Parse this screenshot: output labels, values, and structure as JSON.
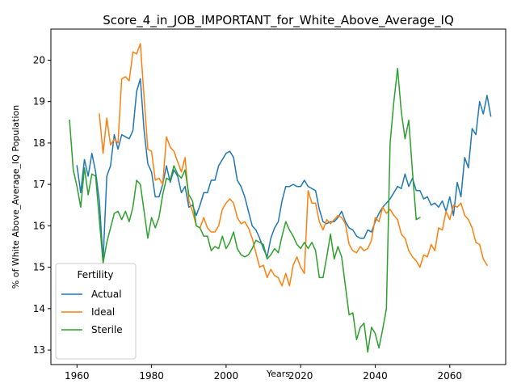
{
  "chart_data": {
    "type": "line",
    "title": "Score_4_in_JOB_IMPORTANT_for_White_Above_Average_IQ",
    "xlabel": "Years",
    "ylabel": "% of White Above_Average_IQ Population",
    "xlim": [
      1953,
      2075
    ],
    "ylim": [
      12.65,
      20.75
    ],
    "x_ticks": [
      1960,
      1980,
      2000,
      2020,
      2040,
      2060
    ],
    "y_ticks": [
      13,
      14,
      15,
      16,
      17,
      18,
      19,
      20
    ],
    "grid": false,
    "legend": {
      "title": "Fertility",
      "placement": "lower-left"
    },
    "series": [
      {
        "name": "Actual",
        "color": "#1f77b4",
        "points": [
          [
            1960,
            17.45
          ],
          [
            1961,
            16.8
          ],
          [
            1962,
            17.6
          ],
          [
            1963,
            17.2
          ],
          [
            1964,
            17.75
          ],
          [
            1965,
            17.3
          ],
          [
            1966,
            16.6
          ],
          [
            1967,
            15.15
          ],
          [
            1968,
            17.2
          ],
          [
            1969,
            17.45
          ],
          [
            1970,
            18.2
          ],
          [
            1971,
            17.85
          ],
          [
            1972,
            18.2
          ],
          [
            1973,
            18.15
          ],
          [
            1974,
            18.1
          ],
          [
            1975,
            18.3
          ],
          [
            1976,
            19.25
          ],
          [
            1977,
            19.55
          ],
          [
            1978,
            18.3
          ],
          [
            1979,
            17.5
          ],
          [
            1980,
            17.3
          ],
          [
            1981,
            16.7
          ],
          [
            1982,
            16.7
          ],
          [
            1983,
            17.0
          ],
          [
            1984,
            17.45
          ],
          [
            1985,
            17.05
          ],
          [
            1986,
            17.35
          ],
          [
            1987,
            17.2
          ],
          [
            1988,
            16.8
          ],
          [
            1989,
            16.95
          ],
          [
            1990,
            16.45
          ],
          [
            1991,
            16.5
          ],
          [
            1992,
            16.25
          ],
          [
            1993,
            16.5
          ],
          [
            1994,
            16.8
          ],
          [
            1995,
            16.8
          ],
          [
            1996,
            17.1
          ],
          [
            1997,
            17.1
          ],
          [
            1998,
            17.45
          ],
          [
            1999,
            17.6
          ],
          [
            2000,
            17.75
          ],
          [
            2001,
            17.8
          ],
          [
            2002,
            17.65
          ],
          [
            2003,
            17.1
          ],
          [
            2004,
            16.95
          ],
          [
            2005,
            16.7
          ],
          [
            2006,
            16.35
          ],
          [
            2007,
            16.0
          ],
          [
            2008,
            15.9
          ],
          [
            2009,
            15.7
          ],
          [
            2010,
            15.45
          ],
          [
            2011,
            15.25
          ],
          [
            2012,
            15.7
          ],
          [
            2013,
            15.95
          ],
          [
            2014,
            16.1
          ],
          [
            2015,
            16.6
          ],
          [
            2016,
            16.95
          ],
          [
            2017,
            16.95
          ],
          [
            2018,
            17.0
          ],
          [
            2019,
            16.95
          ],
          [
            2020,
            16.95
          ],
          [
            2021,
            17.1
          ],
          [
            2022,
            16.95
          ],
          [
            2023,
            16.9
          ],
          [
            2024,
            16.85
          ],
          [
            2025,
            16.4
          ],
          [
            2026,
            16.1
          ],
          [
            2027,
            16.05
          ],
          [
            2028,
            16.1
          ],
          [
            2029,
            16.1
          ],
          [
            2030,
            16.2
          ],
          [
            2031,
            16.35
          ],
          [
            2032,
            16.1
          ],
          [
            2033,
            15.95
          ],
          [
            2034,
            15.9
          ],
          [
            2035,
            15.75
          ],
          [
            2036,
            15.7
          ],
          [
            2037,
            15.7
          ],
          [
            2038,
            15.9
          ],
          [
            2039,
            15.85
          ],
          [
            2040,
            16.1
          ],
          [
            2041,
            16.3
          ],
          [
            2042,
            16.45
          ],
          [
            2043,
            16.55
          ],
          [
            2044,
            16.65
          ],
          [
            2045,
            16.8
          ],
          [
            2046,
            16.95
          ],
          [
            2047,
            16.9
          ],
          [
            2048,
            17.25
          ],
          [
            2049,
            16.95
          ],
          [
            2050,
            17.15
          ],
          [
            2051,
            16.85
          ],
          [
            2052,
            16.85
          ],
          [
            2053,
            16.65
          ],
          [
            2054,
            16.7
          ],
          [
            2055,
            16.5
          ],
          [
            2056,
            16.55
          ],
          [
            2057,
            16.45
          ],
          [
            2058,
            16.6
          ],
          [
            2059,
            16.35
          ],
          [
            2060,
            16.7
          ],
          [
            2061,
            16.25
          ],
          [
            2062,
            17.05
          ],
          [
            2063,
            16.7
          ],
          [
            2064,
            17.65
          ],
          [
            2065,
            17.4
          ],
          [
            2066,
            18.35
          ],
          [
            2067,
            18.2
          ],
          [
            2068,
            19.0
          ],
          [
            2069,
            18.7
          ],
          [
            2070,
            19.15
          ],
          [
            2071,
            18.65
          ]
        ]
      },
      {
        "name": "Ideal",
        "color": "#ff7f0e",
        "points": [
          [
            1966,
            18.7
          ],
          [
            1967,
            17.75
          ],
          [
            1968,
            18.6
          ],
          [
            1969,
            17.95
          ],
          [
            1970,
            18.1
          ],
          [
            1971,
            18.0
          ],
          [
            1972,
            19.55
          ],
          [
            1973,
            19.6
          ],
          [
            1974,
            19.5
          ],
          [
            1975,
            20.2
          ],
          [
            1976,
            20.15
          ],
          [
            1977,
            20.4
          ],
          [
            1978,
            19.1
          ],
          [
            1979,
            17.85
          ],
          [
            1980,
            17.8
          ],
          [
            1981,
            17.1
          ],
          [
            1982,
            17.15
          ],
          [
            1983,
            17.0
          ],
          [
            1984,
            18.15
          ],
          [
            1985,
            17.9
          ],
          [
            1986,
            17.8
          ],
          [
            1987,
            17.55
          ],
          [
            1988,
            17.3
          ],
          [
            1989,
            17.65
          ],
          [
            1990,
            16.6
          ],
          [
            1991,
            16.35
          ],
          [
            1992,
            16.0
          ],
          [
            1993,
            15.95
          ],
          [
            1994,
            16.2
          ],
          [
            1995,
            15.95
          ],
          [
            1996,
            15.85
          ],
          [
            1997,
            15.85
          ],
          [
            1998,
            16.0
          ],
          [
            1999,
            16.4
          ],
          [
            2000,
            16.55
          ],
          [
            2001,
            16.65
          ],
          [
            2002,
            16.55
          ],
          [
            2003,
            16.2
          ],
          [
            2004,
            16.05
          ],
          [
            2005,
            16.1
          ],
          [
            2006,
            15.95
          ],
          [
            2007,
            15.7
          ],
          [
            2008,
            15.35
          ],
          [
            2009,
            15.0
          ],
          [
            2010,
            15.05
          ],
          [
            2011,
            14.75
          ],
          [
            2012,
            14.95
          ],
          [
            2013,
            14.8
          ],
          [
            2014,
            14.75
          ],
          [
            2015,
            14.55
          ],
          [
            2016,
            14.85
          ],
          [
            2017,
            14.55
          ],
          [
            2018,
            15.05
          ],
          [
            2019,
            15.25
          ],
          [
            2020,
            15.0
          ],
          [
            2021,
            14.85
          ],
          [
            2022,
            16.85
          ],
          [
            2023,
            16.55
          ],
          [
            2024,
            16.55
          ],
          [
            2025,
            16.1
          ],
          [
            2026,
            15.9
          ],
          [
            2027,
            16.15
          ],
          [
            2028,
            16.05
          ],
          [
            2029,
            16.15
          ],
          [
            2030,
            16.25
          ],
          [
            2031,
            16.2
          ],
          [
            2032,
            16.05
          ],
          [
            2033,
            15.55
          ],
          [
            2034,
            15.4
          ],
          [
            2035,
            15.35
          ],
          [
            2036,
            15.5
          ],
          [
            2037,
            15.4
          ],
          [
            2038,
            15.45
          ],
          [
            2039,
            15.65
          ],
          [
            2040,
            16.2
          ],
          [
            2041,
            16.1
          ],
          [
            2042,
            16.45
          ],
          [
            2043,
            16.3
          ],
          [
            2044,
            16.4
          ],
          [
            2045,
            16.25
          ],
          [
            2046,
            16.15
          ],
          [
            2047,
            15.8
          ],
          [
            2048,
            15.7
          ],
          [
            2049,
            15.4
          ],
          [
            2050,
            15.25
          ],
          [
            2051,
            15.15
          ],
          [
            2052,
            15.0
          ],
          [
            2053,
            15.3
          ],
          [
            2054,
            15.25
          ],
          [
            2055,
            15.55
          ],
          [
            2056,
            15.4
          ],
          [
            2057,
            15.95
          ],
          [
            2058,
            15.9
          ],
          [
            2059,
            16.35
          ],
          [
            2060,
            16.15
          ],
          [
            2061,
            16.5
          ],
          [
            2062,
            16.45
          ],
          [
            2063,
            16.55
          ],
          [
            2064,
            16.25
          ],
          [
            2065,
            16.15
          ],
          [
            2066,
            15.95
          ],
          [
            2067,
            15.6
          ],
          [
            2068,
            15.55
          ],
          [
            2069,
            15.2
          ],
          [
            2070,
            15.05
          ]
        ]
      },
      {
        "name": "Sterile",
        "color": "#2ca02c",
        "points": [
          [
            1958,
            18.55
          ],
          [
            1959,
            17.35
          ],
          [
            1960,
            16.95
          ],
          [
            1961,
            16.45
          ],
          [
            1962,
            17.4
          ],
          [
            1963,
            16.75
          ],
          [
            1964,
            17.25
          ],
          [
            1965,
            17.2
          ],
          [
            1966,
            16.15
          ],
          [
            1967,
            15.1
          ],
          [
            1968,
            15.6
          ],
          [
            1969,
            15.95
          ],
          [
            1970,
            16.3
          ],
          [
            1971,
            16.35
          ],
          [
            1972,
            16.15
          ],
          [
            1973,
            16.35
          ],
          [
            1974,
            16.1
          ],
          [
            1975,
            16.45
          ],
          [
            1976,
            17.1
          ],
          [
            1977,
            17.0
          ],
          [
            1978,
            16.35
          ],
          [
            1979,
            15.7
          ],
          [
            1980,
            16.2
          ],
          [
            1981,
            15.95
          ],
          [
            1982,
            16.2
          ],
          [
            1983,
            16.75
          ],
          [
            1984,
            17.15
          ],
          [
            1985,
            17.1
          ],
          [
            1986,
            17.45
          ],
          [
            1987,
            17.25
          ],
          [
            1988,
            17.15
          ],
          [
            1989,
            17.35
          ],
          [
            1990,
            16.75
          ],
          [
            1991,
            16.6
          ],
          [
            1992,
            16.0
          ],
          [
            1993,
            15.95
          ],
          [
            1994,
            15.75
          ],
          [
            1995,
            15.75
          ],
          [
            1996,
            15.4
          ],
          [
            1997,
            15.5
          ],
          [
            1998,
            15.45
          ],
          [
            1999,
            15.75
          ],
          [
            2000,
            15.45
          ],
          [
            2001,
            15.6
          ],
          [
            2002,
            15.85
          ],
          [
            2003,
            15.45
          ],
          [
            2004,
            15.3
          ],
          [
            2005,
            15.25
          ],
          [
            2006,
            15.3
          ],
          [
            2007,
            15.45
          ],
          [
            2008,
            15.65
          ],
          [
            2009,
            15.6
          ],
          [
            2010,
            15.55
          ],
          [
            2011,
            15.2
          ],
          [
            2012,
            15.3
          ],
          [
            2013,
            15.45
          ],
          [
            2014,
            15.35
          ],
          [
            2015,
            15.75
          ],
          [
            2016,
            16.1
          ],
          [
            2017,
            15.9
          ],
          [
            2018,
            15.75
          ],
          [
            2019,
            15.55
          ],
          [
            2020,
            15.45
          ],
          [
            2021,
            15.6
          ],
          [
            2022,
            15.45
          ],
          [
            2023,
            15.6
          ],
          [
            2024,
            15.4
          ],
          [
            2025,
            14.75
          ],
          [
            2026,
            14.75
          ],
          [
            2027,
            15.25
          ],
          [
            2028,
            15.8
          ],
          [
            2029,
            15.2
          ],
          [
            2030,
            15.5
          ],
          [
            2031,
            15.25
          ],
          [
            2032,
            14.55
          ],
          [
            2033,
            13.85
          ],
          [
            2034,
            13.9
          ],
          [
            2035,
            13.25
          ],
          [
            2036,
            13.55
          ],
          [
            2037,
            13.65
          ],
          [
            2038,
            12.95
          ],
          [
            2039,
            13.55
          ],
          [
            2040,
            13.4
          ],
          [
            2041,
            13.05
          ],
          [
            2042,
            13.5
          ],
          [
            2043,
            14.0
          ],
          [
            2044,
            18.0
          ],
          [
            2045,
            19.0
          ],
          [
            2046,
            19.8
          ],
          [
            2047,
            18.75
          ],
          [
            2048,
            18.1
          ],
          [
            2049,
            18.55
          ],
          [
            2050,
            17.3
          ],
          [
            2051,
            16.15
          ],
          [
            2052,
            16.2
          ]
        ]
      }
    ]
  }
}
